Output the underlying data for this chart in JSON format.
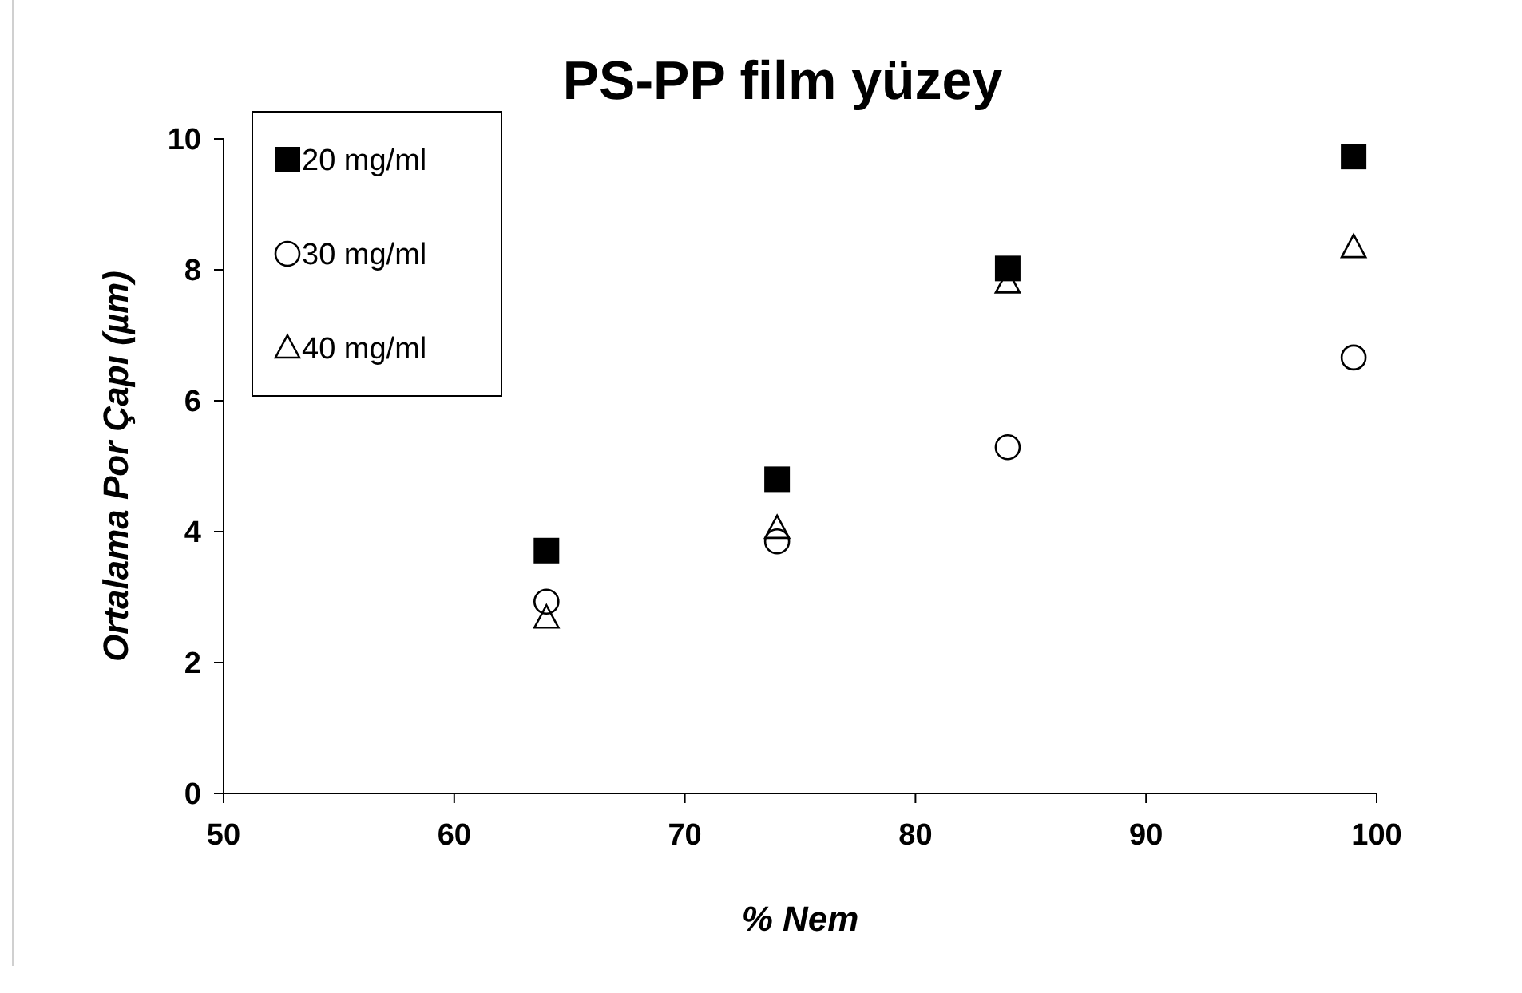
{
  "chart_data": {
    "type": "scatter",
    "title": "PS-PP film yüzey",
    "xlabel": "% Nem",
    "ylabel": "Ortalama Por Çapı (µm)",
    "x": [
      64,
      74,
      84,
      99
    ],
    "series": [
      {
        "name": "20 mg/ml",
        "color": "#000000",
        "marker": "square",
        "values": [
          3.71,
          4.8,
          8.02,
          9.73
        ]
      },
      {
        "name": "30 mg/ml",
        "color": "#000000",
        "marker": "circle",
        "values": [
          2.93,
          3.85,
          5.29,
          6.66
        ]
      },
      {
        "name": "40 mg/ml",
        "color": "#000000",
        "marker": "triangle",
        "values": [
          2.68,
          4.05,
          7.8,
          8.34
        ]
      }
    ],
    "xlim": [
      50,
      100
    ],
    "xticks": [
      50,
      60,
      70,
      80,
      90,
      100
    ],
    "ylim": [
      0,
      10
    ],
    "yticks": [
      0,
      2,
      4,
      6,
      8,
      10
    ],
    "grid": false,
    "legend": "top left"
  }
}
